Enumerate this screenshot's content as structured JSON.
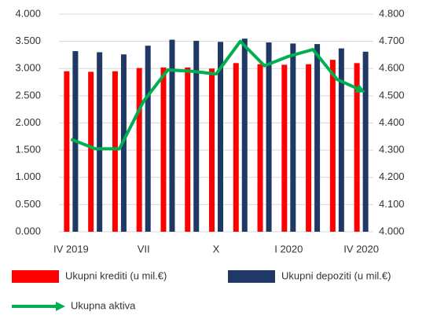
{
  "chart_data": {
    "type": "bar_line",
    "categories": [
      "IV 2019",
      null,
      null,
      "VII",
      null,
      null,
      "X",
      null,
      null,
      "I 2020",
      null,
      null,
      "IV 2020"
    ],
    "series": [
      {
        "name": "Ukupni krediti (u mil.€)",
        "color": "#ff0000",
        "type": "bar",
        "values": [
          2950,
          2940,
          2950,
          3010,
          3020,
          3020,
          3000,
          3100,
          3080,
          3070,
          3080,
          3160,
          3100
        ]
      },
      {
        "name": "Ukupni depoziti (u mil.€)",
        "color": "#1f3864",
        "type": "bar",
        "values": [
          3320,
          3300,
          3260,
          3420,
          3530,
          3510,
          3490,
          3550,
          3480,
          3460,
          3450,
          3370,
          3310
        ]
      },
      {
        "name": "Ukupna aktiva",
        "color": "#00b050",
        "type": "line",
        "axis": "y2",
        "values": [
          4340,
          4305,
          4305,
          4480,
          4595,
          4590,
          4580,
          4700,
          4610,
          4645,
          4670,
          4560,
          4520
        ]
      }
    ],
    "ylim": [
      0,
      4000
    ],
    "yticks": [
      {
        "value": 0,
        "label": "0.000"
      },
      {
        "value": 500,
        "label": "0.500"
      },
      {
        "value": 1000,
        "label": "1.000"
      },
      {
        "value": 1500,
        "label": "1.500"
      },
      {
        "value": 2000,
        "label": "2.000"
      },
      {
        "value": 2500,
        "label": "2.500"
      },
      {
        "value": 3000,
        "label": "3.000"
      },
      {
        "value": 3500,
        "label": "3.500"
      },
      {
        "value": 4000,
        "label": "4.000"
      }
    ],
    "y2lim": [
      4000,
      4800
    ],
    "y2ticks": [
      {
        "value": 4000,
        "label": "4.000"
      },
      {
        "value": 4100,
        "label": "4.100"
      },
      {
        "value": 4200,
        "label": "4.200"
      },
      {
        "value": 4300,
        "label": "4.300"
      },
      {
        "value": 4400,
        "label": "4.400"
      },
      {
        "value": 4500,
        "label": "4.500"
      },
      {
        "value": 4600,
        "label": "4.600"
      },
      {
        "value": 4700,
        "label": "4.700"
      },
      {
        "value": 4800,
        "label": "4.800"
      }
    ],
    "grid": true
  }
}
